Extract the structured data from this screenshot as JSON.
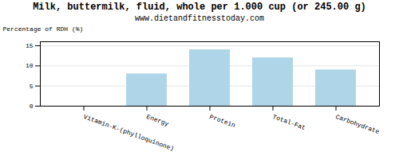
{
  "chart_data": {
    "type": "bar",
    "title": "Milk, buttermilk, fluid, whole per 1.000 cup (or 245.00 g)",
    "subtitle": "www.dietandfitnesstoday.com",
    "categories": [
      "Vitamin-K-(phylloquinone)",
      "Energy",
      "Protein",
      "Total-Fat",
      "Carbohydrate"
    ],
    "values": [
      0,
      8,
      14,
      12,
      9
    ],
    "color": "#aed6e8",
    "ylabel": "Percentage of RDH (%)",
    "ylim": [
      0,
      16
    ],
    "yticks": [
      0,
      5,
      10,
      15
    ],
    "grid": true
  }
}
